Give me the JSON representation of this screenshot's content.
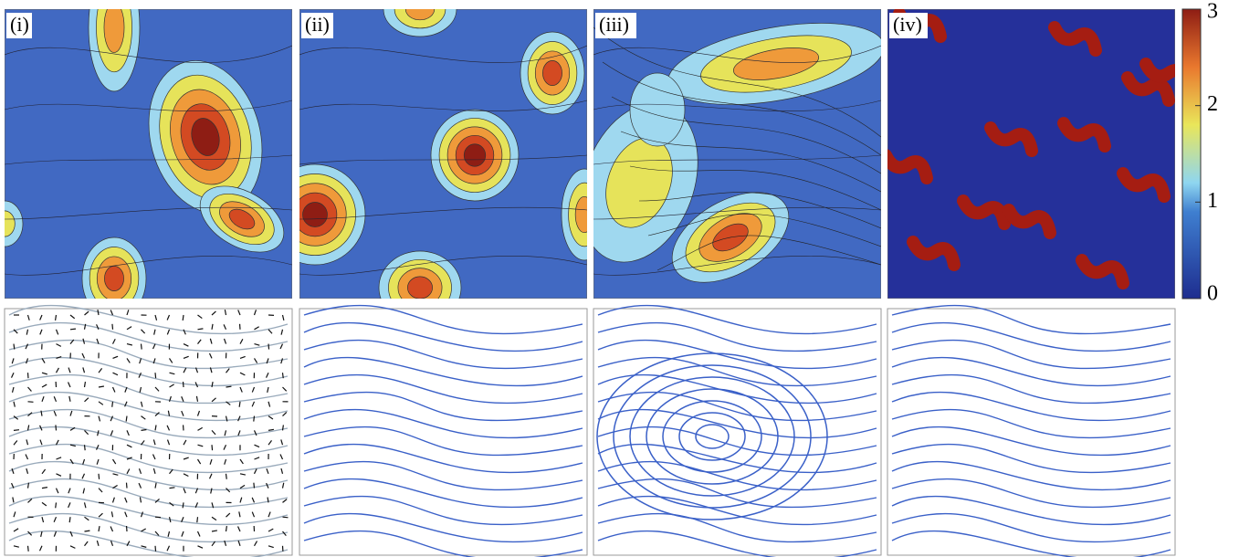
{
  "panels": [
    {
      "label": "(i)"
    },
    {
      "label": "(ii)"
    },
    {
      "label": "(iii)"
    },
    {
      "label": "(iv)"
    }
  ],
  "colorbar": {
    "range": [
      0,
      3
    ],
    "ticks": [
      0,
      1,
      2,
      3
    ]
  }
}
